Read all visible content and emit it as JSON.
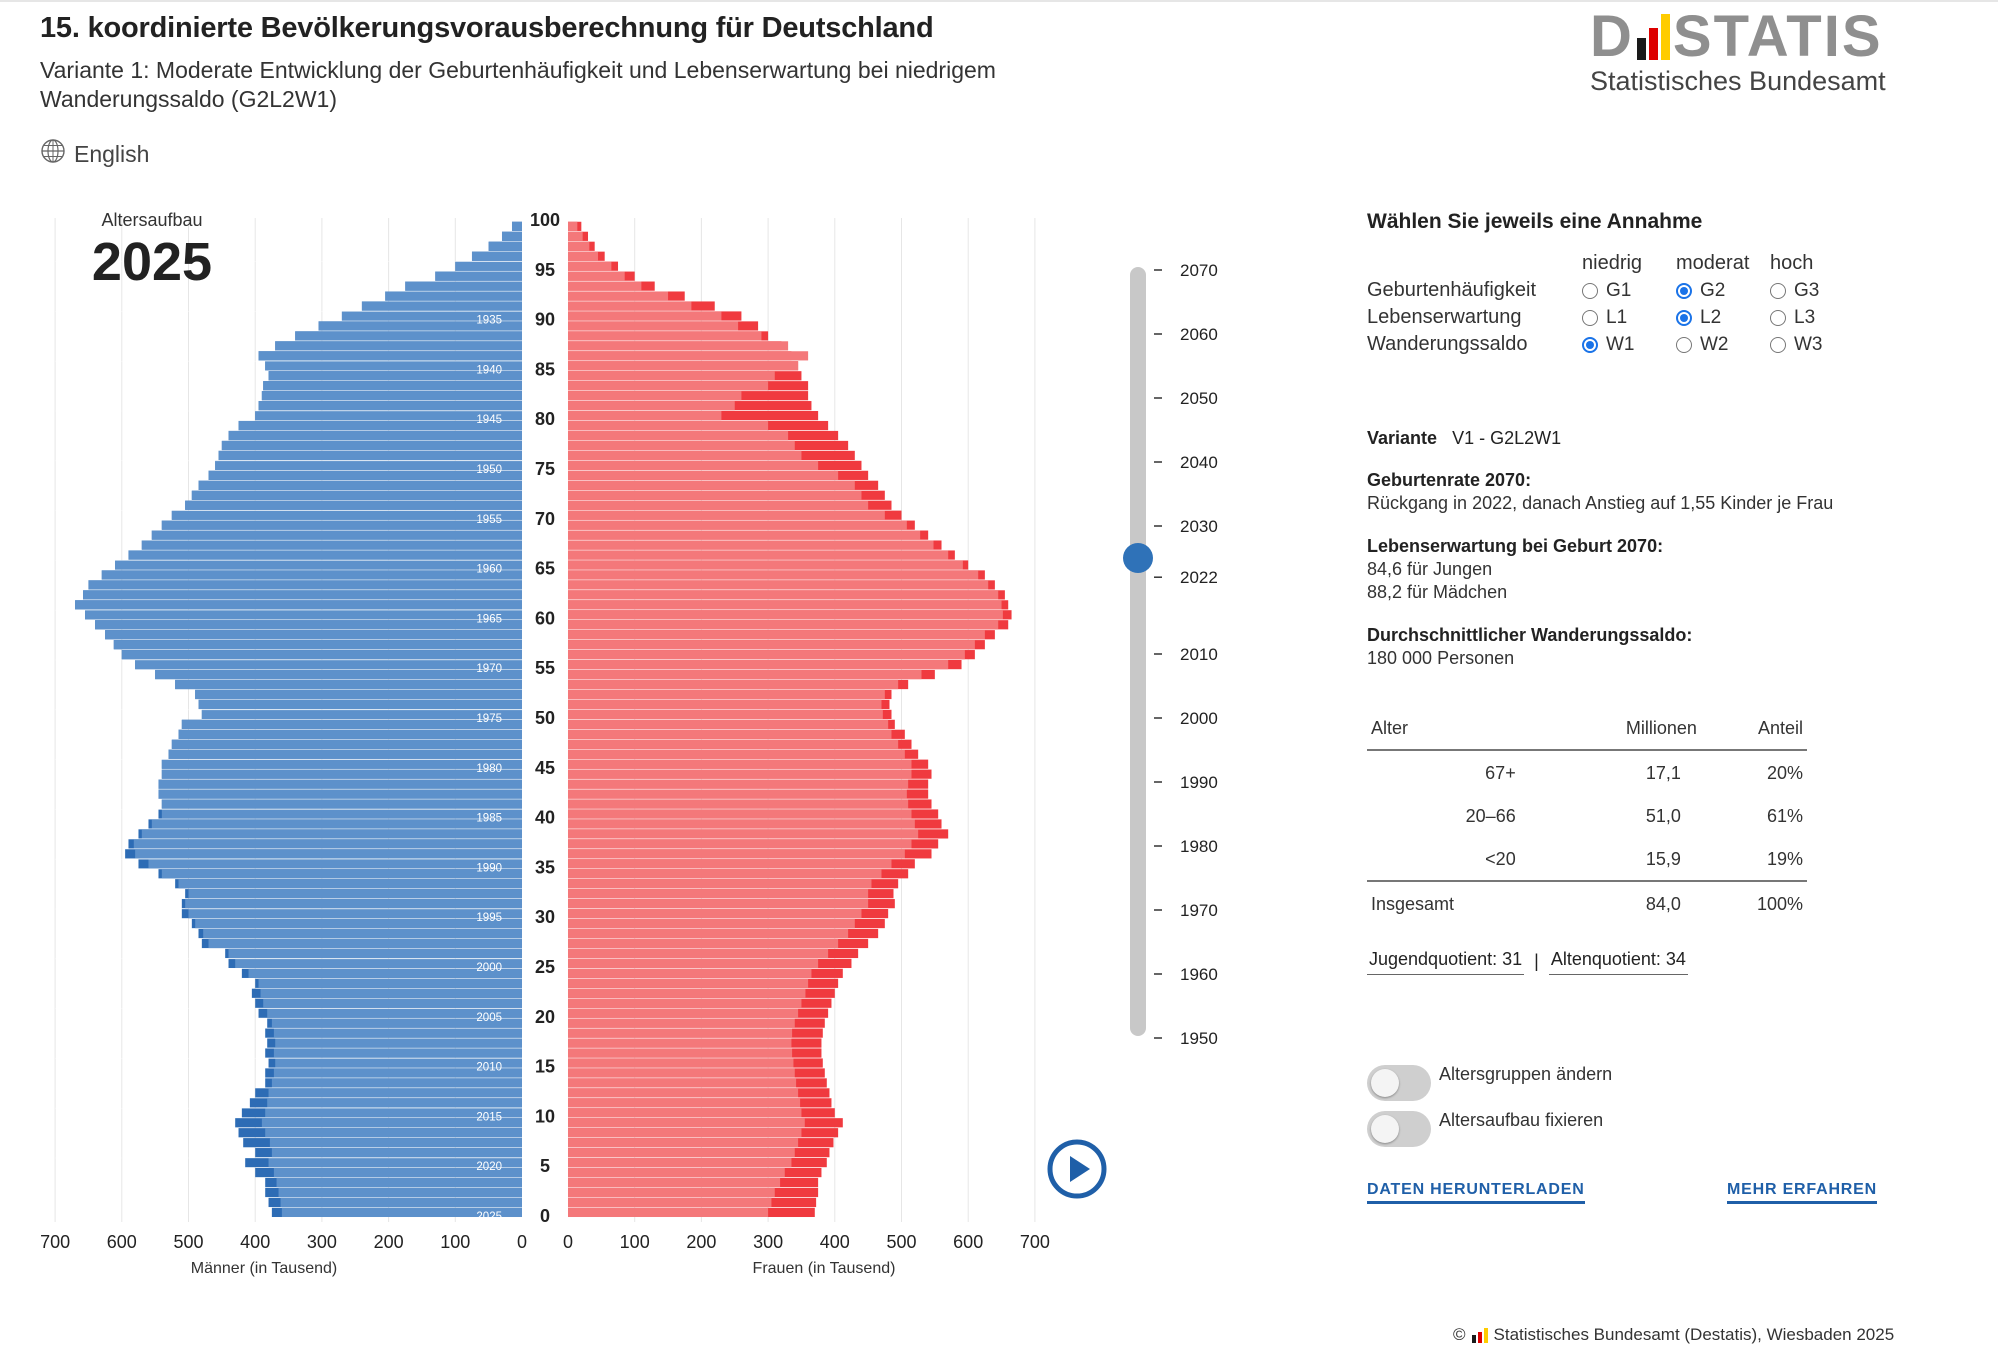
{
  "header": {
    "title": "15. koordinierte Bevölkerungsvorausberechnung für Deutschland",
    "subtitle": "Variante 1: Moderate Entwicklung der Geburtenhäufigkeit und Lebenserwartung bei niedrigem Wanderungssaldo (G2L2W1)",
    "language_link": "English",
    "language_icon": "globe-icon"
  },
  "logo": {
    "word_left": "D",
    "word_right": "STATIS",
    "subtitle": "Statistisches Bundesamt",
    "colors": {
      "grey": "#8f8f8f",
      "black": "#1a1a1a",
      "red": "#dd0000",
      "gold": "#ffcc00"
    }
  },
  "chart_data": {
    "type": "bar",
    "subtype": "population-pyramid",
    "title_label": "Altersaufbau",
    "year": "2025",
    "ages": [
      0,
      1,
      2,
      3,
      4,
      5,
      6,
      7,
      8,
      9,
      10,
      11,
      12,
      13,
      14,
      15,
      16,
      17,
      18,
      19,
      20,
      21,
      22,
      23,
      24,
      25,
      26,
      27,
      28,
      29,
      30,
      31,
      32,
      33,
      34,
      35,
      36,
      37,
      38,
      39,
      40,
      41,
      42,
      43,
      44,
      45,
      46,
      47,
      48,
      49,
      50,
      51,
      52,
      53,
      54,
      55,
      56,
      57,
      58,
      59,
      60,
      61,
      62,
      63,
      64,
      65,
      66,
      67,
      68,
      69,
      70,
      71,
      72,
      73,
      74,
      75,
      76,
      77,
      78,
      79,
      80,
      81,
      82,
      83,
      84,
      85,
      86,
      87,
      88,
      89,
      90,
      91,
      92,
      93,
      94,
      95,
      96,
      97,
      98,
      99
    ],
    "series": [
      {
        "name": "Männer (in Tausend)",
        "color": "#5d91cb",
        "values": [
          375,
          380,
          385,
          385,
          400,
          415,
          400,
          418,
          425,
          430,
          420,
          408,
          400,
          385,
          385,
          380,
          385,
          382,
          385,
          382,
          395,
          400,
          405,
          400,
          420,
          440,
          445,
          480,
          485,
          495,
          510,
          510,
          505,
          520,
          545,
          575,
          595,
          590,
          575,
          560,
          545,
          540,
          545,
          545,
          540,
          540,
          530,
          525,
          515,
          510,
          480,
          485,
          490,
          520,
          550,
          580,
          600,
          612,
          625,
          640,
          655,
          670,
          658,
          650,
          630,
          610,
          590,
          570,
          555,
          540,
          525,
          505,
          495,
          485,
          470,
          460,
          455,
          450,
          440,
          425,
          400,
          395,
          390,
          388,
          380,
          385,
          395,
          370,
          340,
          305,
          270,
          240,
          205,
          175,
          130,
          100,
          75,
          50,
          30,
          15
        ]
      },
      {
        "name": "Frauen (in Tausend)",
        "color": "#f4787a",
        "values": [
          370,
          372,
          375,
          375,
          380,
          388,
          392,
          398,
          405,
          412,
          400,
          395,
          392,
          388,
          385,
          382,
          380,
          380,
          382,
          385,
          390,
          395,
          400,
          405,
          412,
          425,
          435,
          450,
          465,
          475,
          480,
          490,
          488,
          495,
          510,
          520,
          545,
          555,
          570,
          560,
          555,
          545,
          540,
          540,
          545,
          540,
          525,
          515,
          505,
          490,
          485,
          482,
          485,
          510,
          550,
          590,
          610,
          625,
          640,
          660,
          665,
          660,
          655,
          640,
          625,
          600,
          580,
          560,
          540,
          520,
          500,
          485,
          475,
          465,
          450,
          440,
          430,
          420,
          405,
          390,
          375,
          365,
          360,
          360,
          350,
          345,
          335,
          320,
          300,
          285,
          260,
          220,
          175,
          130,
          100,
          75,
          55,
          40,
          30,
          20
        ]
      }
    ],
    "projected_overlay": {
      "men": {
        "color": "#2d6cb5",
        "values": [
          360,
          362,
          365,
          368,
          372,
          380,
          375,
          378,
          385,
          390,
          385,
          382,
          380,
          375,
          372,
          370,
          372,
          370,
          372,
          375,
          382,
          388,
          392,
          395,
          410,
          430,
          440,
          470,
          478,
          490,
          500,
          505,
          500,
          515,
          540,
          560,
          580,
          582,
          570,
          555,
          540,
          540,
          545,
          545,
          540,
          540,
          530,
          525,
          515,
          510,
          480,
          485,
          490,
          520,
          550,
          580,
          600,
          612,
          625,
          640,
          655,
          670,
          658,
          650,
          630,
          610,
          590,
          570,
          555,
          540,
          525,
          505,
          495,
          485,
          470,
          460,
          455,
          450,
          440,
          425,
          400,
          395,
          390,
          388,
          380,
          385,
          395,
          370,
          340,
          305,
          270,
          240,
          205,
          175,
          130,
          100,
          75,
          50,
          30,
          15
        ]
      },
      "women": {
        "color": "#f03a3f",
        "values": [
          300,
          305,
          310,
          318,
          325,
          335,
          340,
          345,
          350,
          355,
          350,
          348,
          345,
          342,
          340,
          338,
          336,
          335,
          336,
          340,
          345,
          350,
          356,
          360,
          365,
          375,
          390,
          405,
          420,
          430,
          440,
          450,
          450,
          455,
          470,
          485,
          505,
          515,
          525,
          520,
          515,
          510,
          508,
          510,
          515,
          515,
          505,
          495,
          485,
          480,
          472,
          470,
          475,
          495,
          530,
          570,
          595,
          610,
          625,
          645,
          652,
          650,
          645,
          630,
          615,
          592,
          570,
          548,
          528,
          508,
          475,
          450,
          440,
          430,
          405,
          375,
          350,
          340,
          330,
          300,
          230,
          250,
          260,
          300,
          310,
          345,
          360,
          330,
          290,
          255,
          230,
          185,
          150,
          110,
          85,
          65,
          45,
          32,
          22,
          14
        ]
      }
    },
    "birth_year_labels": [
      "1935",
      "1940",
      "1945",
      "1950",
      "1955",
      "1960",
      "1965",
      "1970",
      "1975",
      "1980",
      "1985",
      "1990",
      "1995",
      "2000",
      "2005",
      "2010",
      "2015",
      "2020",
      "2025"
    ],
    "age_ticks": [
      "0",
      "5",
      "10",
      "15",
      "20",
      "25",
      "30",
      "35",
      "40",
      "45",
      "50",
      "55",
      "60",
      "65",
      "70",
      "75",
      "80",
      "85",
      "90",
      "95",
      "100"
    ],
    "x_ticks_men": [
      "700",
      "600",
      "500",
      "400",
      "300",
      "200",
      "100",
      "0"
    ],
    "x_ticks_women": [
      "0",
      "100",
      "200",
      "300",
      "400",
      "500",
      "600",
      "700"
    ],
    "xlabel_men": "Männer (in Tausend)",
    "xlabel_women": "Frauen (in Tausend)",
    "xlim": [
      0,
      700
    ],
    "ylim": [
      0,
      100
    ],
    "grid": true
  },
  "timeline": {
    "years": [
      "2070",
      "2060",
      "2050",
      "2040",
      "2030",
      "2022",
      "2010",
      "2000",
      "1990",
      "1980",
      "1970",
      "1960",
      "1950"
    ],
    "current_value": 2025,
    "track_color": "#c8c8c8",
    "handle_color": "#2f72b8"
  },
  "play_button": {
    "icon": "play-icon",
    "color": "#1f5fa8"
  },
  "assumptions": {
    "title": "Wählen Sie jeweils eine Annahme",
    "levels": [
      "niedrig",
      "moderat",
      "hoch"
    ],
    "rows": [
      {
        "label": "Geburtenhäufigkeit",
        "options": [
          "G1",
          "G2",
          "G3"
        ],
        "selected": "G2"
      },
      {
        "label": "Lebenserwartung",
        "options": [
          "L1",
          "L2",
          "L3"
        ],
        "selected": "L2"
      },
      {
        "label": "Wanderungssaldo",
        "options": [
          "W1",
          "W2",
          "W3"
        ],
        "selected": "W1"
      }
    ]
  },
  "variant": {
    "label": "Variante",
    "value": "V1 - G2L2W1"
  },
  "birth_rate": {
    "label": "Geburtenrate 2070:",
    "text": "Rückgang in 2022, danach Anstieg auf 1,55 Kinder je Frau"
  },
  "life_expectancy": {
    "label": "Lebenserwartung bei Geburt 2070:",
    "boys": "84,6 für Jungen",
    "girls": "88,2 für Mädchen"
  },
  "migration": {
    "label": "Durchschnittlicher Wanderungssaldo:",
    "text": "180 000 Personen"
  },
  "age_table": {
    "headers": [
      "Alter",
      "Millionen",
      "Anteil"
    ],
    "rows": [
      [
        "67+",
        "17,1",
        "20%"
      ],
      [
        "20–66",
        "51,0",
        "61%"
      ],
      [
        "<20",
        "15,9",
        "19%"
      ]
    ],
    "total": [
      "Insgesamt",
      "84,0",
      "100%"
    ]
  },
  "quotients": {
    "youth": "Jugendquotient: 31",
    "separator": "|",
    "old": "Altenquotient: 34"
  },
  "toggles": [
    {
      "label": "Altersgruppen ändern",
      "on": false
    },
    {
      "label": "Altersaufbau fixieren",
      "on": false
    }
  ],
  "links": {
    "download": "DATEN HERUNTERLADEN",
    "more": "MEHR ERFAHREN"
  },
  "footer": {
    "symbol": "©",
    "text": "Statistisches Bundesamt (Destatis), Wiesbaden 2025"
  }
}
